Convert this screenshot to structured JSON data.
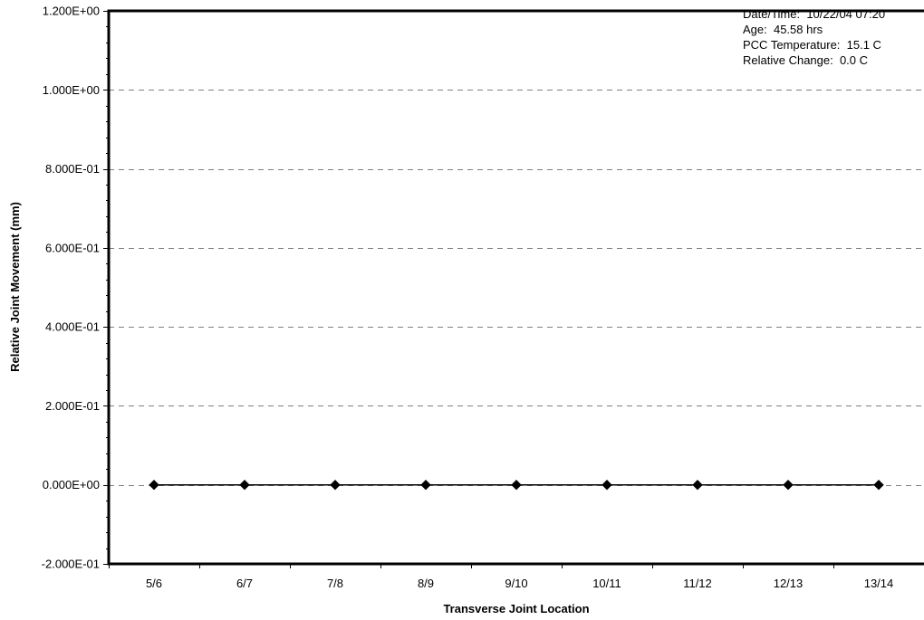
{
  "chart_data": {
    "type": "line",
    "title": "",
    "xlabel": "Transverse Joint Location",
    "ylabel": "Relative Joint Movement (mm)",
    "categories": [
      "5/6",
      "6/7",
      "7/8",
      "8/9",
      "9/10",
      "10/11",
      "11/12",
      "12/13",
      "13/14"
    ],
    "series": [
      {
        "values": [
          0,
          0,
          0,
          0,
          0,
          0,
          0,
          0,
          0
        ],
        "color": "#000000",
        "marker": "diamond"
      }
    ],
    "ylim": [
      -0.2,
      1.2
    ],
    "y_ticks": [
      {
        "value": 1.2,
        "label": "1.200E+00"
      },
      {
        "value": 1.0,
        "label": "1.000E+00"
      },
      {
        "value": 0.8,
        "label": "8.000E-01"
      },
      {
        "value": 0.6,
        "label": "6.000E-01"
      },
      {
        "value": 0.4,
        "label": "4.000E-01"
      },
      {
        "value": 0.2,
        "label": "2.000E-01"
      },
      {
        "value": 0.0,
        "label": "0.000E+00"
      },
      {
        "value": -0.2,
        "label": "-2.000E-01"
      }
    ],
    "grid": {
      "horizontal": true,
      "style": "dashed",
      "color": "#808080"
    },
    "legend": "none",
    "annotation_lines": [
      "Date/Time:  10/22/04 07:20",
      "Age:  45.58 hrs",
      "PCC Temperature:  15.1 C",
      "Relative Change:  0.0 C"
    ]
  }
}
